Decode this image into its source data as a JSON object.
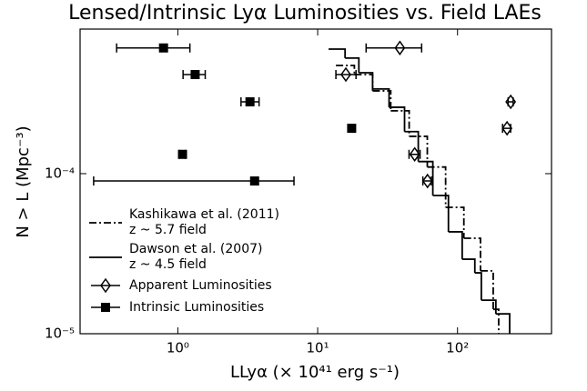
{
  "chart_data": {
    "type": "scatter",
    "title": "Lensed/Intrinsic Lyα Luminosities vs. Field LAEs",
    "xlabel": "LLyα (× 10⁴¹ erg s⁻¹)",
    "ylabel": "N > L (Mpc⁻³)",
    "xscale": "log",
    "yscale": "log",
    "xlim": [
      0.2,
      470
    ],
    "ylim": [
      1e-05,
      0.0008
    ],
    "xticks": [
      {
        "value": 1,
        "label": "10⁰"
      },
      {
        "value": 10,
        "label": "10¹"
      },
      {
        "value": 100,
        "label": "10²"
      }
    ],
    "yticks": [
      {
        "value": 1e-05,
        "label": "10⁻⁵"
      },
      {
        "value": 0.0001,
        "label": "10⁻⁴"
      }
    ],
    "legend": "lower left",
    "series": [
      {
        "name": "Kashikawa et al. (2011)\nz ~ 5.7 field",
        "style": "step",
        "linestyle": "dashdot",
        "color": "#000000",
        "x": [
          13.5,
          18.3,
          24.7,
          33.3,
          45.1,
          60.8,
          82.2,
          111,
          146,
          180,
          197
        ],
        "values": [
          0.000474,
          0.000416,
          0.000329,
          0.000247,
          0.000171,
          0.00011,
          6.16e-05,
          3.95e-05,
          2.47e-05,
          1.42e-05,
          1e-05
        ]
      },
      {
        "name": "Dawson et al. (2007)\nz ~ 4.5 field",
        "style": "step",
        "linestyle": "solid",
        "color": "#000000",
        "x": [
          11.97,
          15.7,
          19.7,
          24.7,
          32.4,
          41.8,
          52.4,
          66.6,
          86.1,
          108,
          133,
          148,
          188,
          236
        ],
        "values": [
          0.0006,
          0.000527,
          0.000427,
          0.000338,
          0.00026,
          0.000183,
          0.000119,
          7.3e-05,
          4.33e-05,
          2.92e-05,
          2.4e-05,
          1.62e-05,
          1.33e-05,
          1e-05
        ]
      },
      {
        "name": "Apparent Luminosities",
        "style": "errorbar",
        "marker": "diamond-open",
        "color": "#000000",
        "x": [
          38.7,
          15.9,
          49.4,
          61,
          240,
          226
        ],
        "values": [
          0.00061,
          0.000416,
          0.000132,
          9e-05,
          0.000281,
          0.000192
        ],
        "xlow": [
          22.2,
          13.5,
          45,
          56.5,
          230,
          210
        ],
        "xhigh": [
          55.4,
          18.8,
          54,
          65,
          250,
          240
        ]
      },
      {
        "name": "Intrinsic Luminosities",
        "style": "errorbar",
        "marker": "square",
        "color": "#000000",
        "x": [
          0.79,
          1.33,
          3.28,
          1.08,
          3.54,
          17.5
        ],
        "values": [
          0.00061,
          0.000416,
          0.000281,
          0.000132,
          9e-05,
          0.000192
        ],
        "xlow": [
          0.365,
          1.09,
          2.83,
          1.03,
          0.25,
          null
        ],
        "xhigh": [
          1.22,
          1.57,
          3.81,
          1.13,
          6.77,
          null
        ]
      }
    ]
  }
}
